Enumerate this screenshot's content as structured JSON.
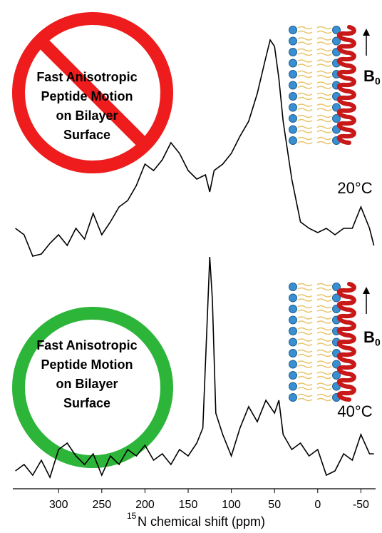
{
  "chart_data": [
    {
      "type": "line",
      "color": "#000000",
      "xlim": [
        353,
        -67
      ],
      "ylim": [
        0,
        110
      ],
      "x": [
        350,
        340,
        330,
        320,
        310,
        300,
        290,
        280,
        270,
        260,
        250,
        240,
        230,
        220,
        210,
        200,
        190,
        180,
        170,
        160,
        150,
        140,
        130,
        125,
        120,
        110,
        100,
        90,
        80,
        70,
        60,
        55,
        50,
        45,
        40,
        30,
        20,
        10,
        0,
        -10,
        -20,
        -30,
        -40,
        -50,
        -60,
        -65
      ],
      "values": [
        20,
        17,
        7,
        8,
        13,
        17,
        12,
        20,
        15,
        27,
        17,
        23,
        30,
        33,
        40,
        50,
        47,
        52,
        60,
        55,
        47,
        43,
        45,
        37,
        47,
        50,
        55,
        63,
        70,
        83,
        100,
        108,
        105,
        90,
        70,
        43,
        23,
        20,
        18,
        20,
        17,
        20,
        20,
        30,
        20,
        12
      ],
      "annotation_lines": [
        "Fast Anisotropic",
        "Peptide Motion",
        "on Bilayer",
        "Surface"
      ],
      "temperature": "20°C",
      "field_label": "B",
      "field_subscript": "0"
    },
    {
      "type": "line",
      "color": "#000000",
      "xlim": [
        353,
        -67
      ],
      "ylim": [
        0,
        115
      ],
      "x": [
        350,
        340,
        330,
        320,
        310,
        300,
        290,
        280,
        270,
        260,
        250,
        240,
        230,
        220,
        210,
        200,
        190,
        180,
        170,
        160,
        150,
        140,
        133,
        128,
        125,
        122,
        118,
        110,
        100,
        90,
        80,
        70,
        60,
        50,
        45,
        40,
        30,
        20,
        10,
        0,
        -10,
        -20,
        -30,
        -40,
        -50,
        -60,
        -65
      ],
      "values": [
        10,
        13,
        8,
        15,
        7,
        20,
        23,
        17,
        13,
        18,
        8,
        17,
        13,
        20,
        17,
        22,
        15,
        18,
        13,
        20,
        17,
        23,
        30,
        80,
        110,
        90,
        37,
        27,
        17,
        30,
        40,
        33,
        43,
        37,
        43,
        27,
        20,
        23,
        17,
        20,
        8,
        10,
        18,
        15,
        27,
        18,
        18
      ],
      "annotation_lines": [
        "Fast Anisotropic",
        "Peptide Motion",
        "on Bilayer",
        "Surface"
      ],
      "temperature": "40°C",
      "field_label": "B",
      "field_subscript": "0",
      "xticks": [
        300,
        250,
        200,
        150,
        100,
        50,
        0,
        -50
      ],
      "xlabel_superscript": "15",
      "xlabel": "N chemical shift (ppm)"
    }
  ]
}
